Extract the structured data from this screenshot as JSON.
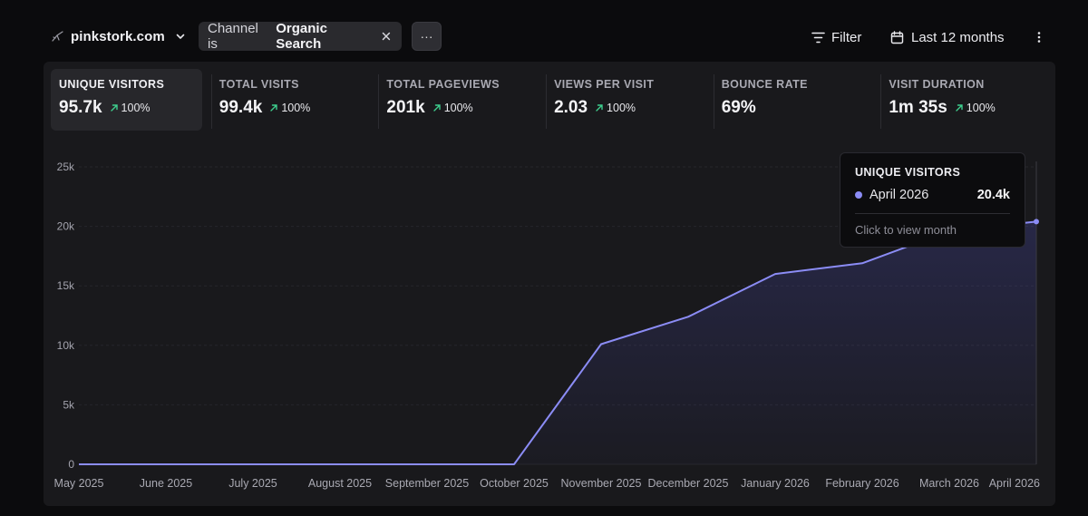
{
  "topbar": {
    "site_name": "pinkstork.com",
    "filter_chip": {
      "prefix": "Channel is",
      "value": "Organic Search"
    },
    "more_label": "···",
    "filter_label": "Filter",
    "range_label": "Last 12 months"
  },
  "metrics": [
    {
      "label": "UNIQUE VISITORS",
      "value": "95.7k",
      "change": "100%"
    },
    {
      "label": "TOTAL VISITS",
      "value": "99.4k",
      "change": "100%"
    },
    {
      "label": "TOTAL PAGEVIEWS",
      "value": "201k",
      "change": "100%"
    },
    {
      "label": "VIEWS PER VISIT",
      "value": "2.03",
      "change": "100%"
    },
    {
      "label": "BOUNCE RATE",
      "value": "69%",
      "change": ""
    },
    {
      "label": "VISIT DURATION",
      "value": "1m 35s",
      "change": "100%"
    }
  ],
  "tooltip": {
    "title": "UNIQUE VISITORS",
    "month": "April 2026",
    "value": "20.4k",
    "hint": "Click to view month"
  },
  "colors": {
    "series": "#8b8cf5",
    "positive": "#3ecf8e"
  },
  "chart_data": {
    "type": "area",
    "categories": [
      "May 2025",
      "June 2025",
      "July 2025",
      "August 2025",
      "September 2025",
      "October 2025",
      "November 2025",
      "December 2025",
      "January 2026",
      "February 2026",
      "March 2026",
      "April 2026"
    ],
    "series": [
      {
        "values": [
          0,
          0,
          0,
          0,
          0,
          0,
          10100,
          12400,
          16000,
          16900,
          19600,
          20400
        ]
      }
    ],
    "ylim": [
      0,
      25000
    ],
    "yticks": [
      0,
      5000,
      10000,
      15000,
      20000,
      25000
    ],
    "ytick_labels": [
      "0",
      "5k",
      "10k",
      "15k",
      "20k",
      "25k"
    ],
    "grid": true,
    "highlighted_index": 11
  }
}
